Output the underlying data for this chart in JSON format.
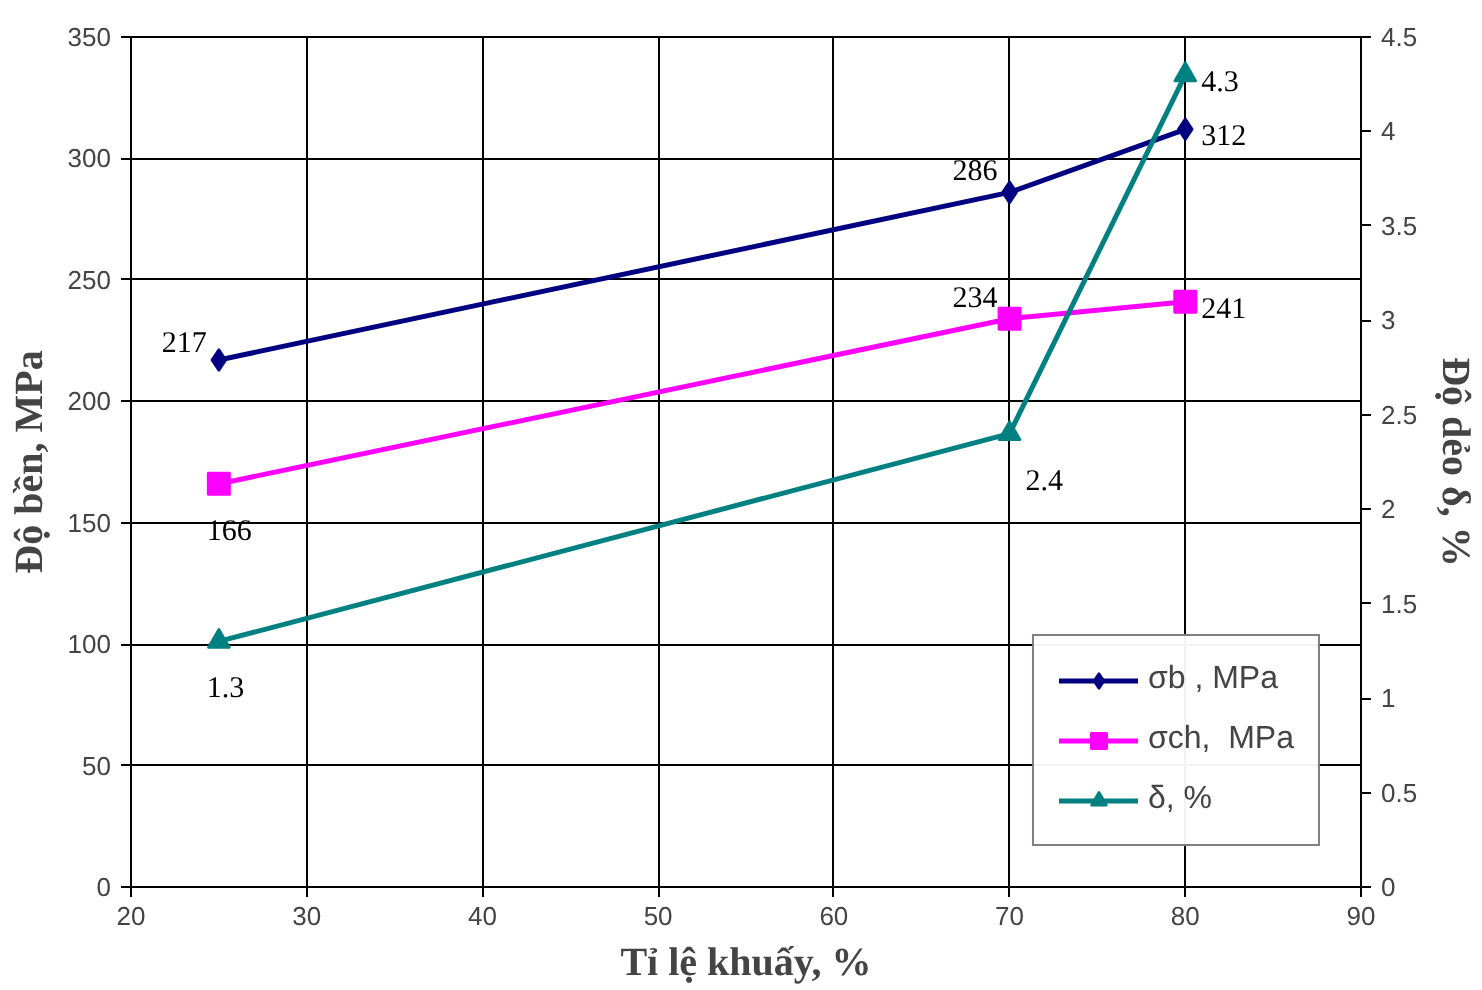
{
  "chart_data": {
    "type": "line",
    "xlabel": "Tỉ lệ khuấy, %",
    "ylabel": "Độ bền, MPa",
    "y2label": "Độ dẻo δ, %",
    "x": [
      25,
      70,
      80
    ],
    "series": [
      {
        "name": "σb , MPa",
        "color": "#000080",
        "marker": "diamond",
        "values": [
          217,
          286,
          312
        ]
      },
      {
        "name": "σch,  MPa",
        "color": "#ff00ff",
        "marker": "square",
        "values": [
          166,
          234,
          241
        ]
      },
      {
        "name": "δ, %",
        "color": "#008080",
        "marker": "triangle",
        "axis": "y2",
        "values": [
          1.3,
          2.4,
          4.3
        ]
      }
    ],
    "xlim": [
      20,
      90
    ],
    "xticks": [
      20,
      30,
      40,
      50,
      60,
      70,
      80,
      90
    ],
    "ylim": [
      0,
      350
    ],
    "yticks": [
      0,
      50,
      100,
      150,
      200,
      250,
      300,
      350
    ],
    "y2lim": [
      0,
      4.5
    ],
    "y2ticks": [
      0,
      0.5,
      1,
      1.5,
      2,
      2.5,
      3,
      3.5,
      4,
      4.5
    ],
    "grid": true,
    "legend": "bottom right",
    "data_labels": true
  }
}
